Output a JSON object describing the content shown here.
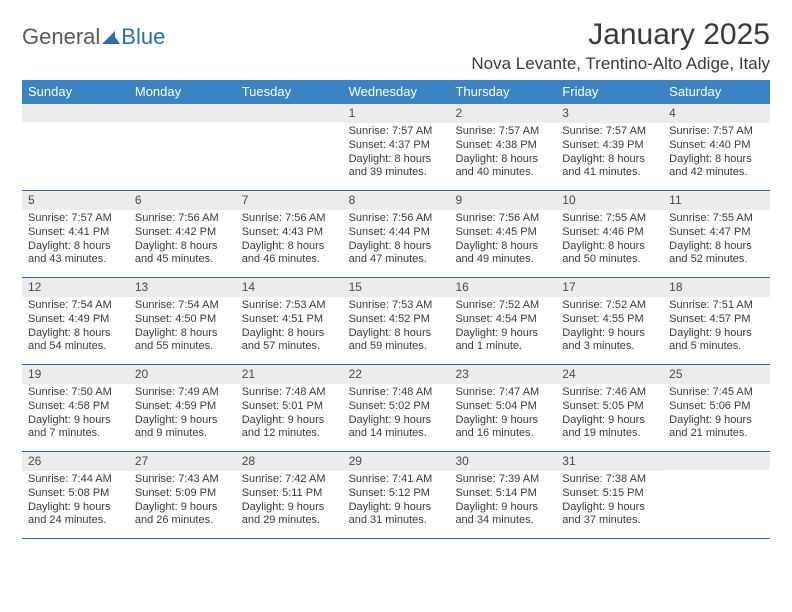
{
  "logo": {
    "text_gray": "General",
    "text_blue": "Blue"
  },
  "title": "January 2025",
  "location": "Nova Levante, Trentino-Alto Adige, Italy",
  "colors": {
    "header_bg": "#3b84c4",
    "header_text": "#ffffff",
    "week_divider": "#2f6aa3",
    "daynum_bg": "#ececec",
    "text": "#3a3a3a",
    "logo_gray": "#5a5a5a",
    "logo_blue": "#2a6fb0"
  },
  "day_headers": [
    "Sunday",
    "Monday",
    "Tuesday",
    "Wednesday",
    "Thursday",
    "Friday",
    "Saturday"
  ],
  "weeks": [
    [
      {
        "n": "",
        "sr": "",
        "ss": "",
        "dl1": "",
        "dl2": ""
      },
      {
        "n": "",
        "sr": "",
        "ss": "",
        "dl1": "",
        "dl2": ""
      },
      {
        "n": "",
        "sr": "",
        "ss": "",
        "dl1": "",
        "dl2": ""
      },
      {
        "n": "1",
        "sr": "Sunrise: 7:57 AM",
        "ss": "Sunset: 4:37 PM",
        "dl1": "Daylight: 8 hours",
        "dl2": "and 39 minutes."
      },
      {
        "n": "2",
        "sr": "Sunrise: 7:57 AM",
        "ss": "Sunset: 4:38 PM",
        "dl1": "Daylight: 8 hours",
        "dl2": "and 40 minutes."
      },
      {
        "n": "3",
        "sr": "Sunrise: 7:57 AM",
        "ss": "Sunset: 4:39 PM",
        "dl1": "Daylight: 8 hours",
        "dl2": "and 41 minutes."
      },
      {
        "n": "4",
        "sr": "Sunrise: 7:57 AM",
        "ss": "Sunset: 4:40 PM",
        "dl1": "Daylight: 8 hours",
        "dl2": "and 42 minutes."
      }
    ],
    [
      {
        "n": "5",
        "sr": "Sunrise: 7:57 AM",
        "ss": "Sunset: 4:41 PM",
        "dl1": "Daylight: 8 hours",
        "dl2": "and 43 minutes."
      },
      {
        "n": "6",
        "sr": "Sunrise: 7:56 AM",
        "ss": "Sunset: 4:42 PM",
        "dl1": "Daylight: 8 hours",
        "dl2": "and 45 minutes."
      },
      {
        "n": "7",
        "sr": "Sunrise: 7:56 AM",
        "ss": "Sunset: 4:43 PM",
        "dl1": "Daylight: 8 hours",
        "dl2": "and 46 minutes."
      },
      {
        "n": "8",
        "sr": "Sunrise: 7:56 AM",
        "ss": "Sunset: 4:44 PM",
        "dl1": "Daylight: 8 hours",
        "dl2": "and 47 minutes."
      },
      {
        "n": "9",
        "sr": "Sunrise: 7:56 AM",
        "ss": "Sunset: 4:45 PM",
        "dl1": "Daylight: 8 hours",
        "dl2": "and 49 minutes."
      },
      {
        "n": "10",
        "sr": "Sunrise: 7:55 AM",
        "ss": "Sunset: 4:46 PM",
        "dl1": "Daylight: 8 hours",
        "dl2": "and 50 minutes."
      },
      {
        "n": "11",
        "sr": "Sunrise: 7:55 AM",
        "ss": "Sunset: 4:47 PM",
        "dl1": "Daylight: 8 hours",
        "dl2": "and 52 minutes."
      }
    ],
    [
      {
        "n": "12",
        "sr": "Sunrise: 7:54 AM",
        "ss": "Sunset: 4:49 PM",
        "dl1": "Daylight: 8 hours",
        "dl2": "and 54 minutes."
      },
      {
        "n": "13",
        "sr": "Sunrise: 7:54 AM",
        "ss": "Sunset: 4:50 PM",
        "dl1": "Daylight: 8 hours",
        "dl2": "and 55 minutes."
      },
      {
        "n": "14",
        "sr": "Sunrise: 7:53 AM",
        "ss": "Sunset: 4:51 PM",
        "dl1": "Daylight: 8 hours",
        "dl2": "and 57 minutes."
      },
      {
        "n": "15",
        "sr": "Sunrise: 7:53 AM",
        "ss": "Sunset: 4:52 PM",
        "dl1": "Daylight: 8 hours",
        "dl2": "and 59 minutes."
      },
      {
        "n": "16",
        "sr": "Sunrise: 7:52 AM",
        "ss": "Sunset: 4:54 PM",
        "dl1": "Daylight: 9 hours",
        "dl2": "and 1 minute."
      },
      {
        "n": "17",
        "sr": "Sunrise: 7:52 AM",
        "ss": "Sunset: 4:55 PM",
        "dl1": "Daylight: 9 hours",
        "dl2": "and 3 minutes."
      },
      {
        "n": "18",
        "sr": "Sunrise: 7:51 AM",
        "ss": "Sunset: 4:57 PM",
        "dl1": "Daylight: 9 hours",
        "dl2": "and 5 minutes."
      }
    ],
    [
      {
        "n": "19",
        "sr": "Sunrise: 7:50 AM",
        "ss": "Sunset: 4:58 PM",
        "dl1": "Daylight: 9 hours",
        "dl2": "and 7 minutes."
      },
      {
        "n": "20",
        "sr": "Sunrise: 7:49 AM",
        "ss": "Sunset: 4:59 PM",
        "dl1": "Daylight: 9 hours",
        "dl2": "and 9 minutes."
      },
      {
        "n": "21",
        "sr": "Sunrise: 7:48 AM",
        "ss": "Sunset: 5:01 PM",
        "dl1": "Daylight: 9 hours",
        "dl2": "and 12 minutes."
      },
      {
        "n": "22",
        "sr": "Sunrise: 7:48 AM",
        "ss": "Sunset: 5:02 PM",
        "dl1": "Daylight: 9 hours",
        "dl2": "and 14 minutes."
      },
      {
        "n": "23",
        "sr": "Sunrise: 7:47 AM",
        "ss": "Sunset: 5:04 PM",
        "dl1": "Daylight: 9 hours",
        "dl2": "and 16 minutes."
      },
      {
        "n": "24",
        "sr": "Sunrise: 7:46 AM",
        "ss": "Sunset: 5:05 PM",
        "dl1": "Daylight: 9 hours",
        "dl2": "and 19 minutes."
      },
      {
        "n": "25",
        "sr": "Sunrise: 7:45 AM",
        "ss": "Sunset: 5:06 PM",
        "dl1": "Daylight: 9 hours",
        "dl2": "and 21 minutes."
      }
    ],
    [
      {
        "n": "26",
        "sr": "Sunrise: 7:44 AM",
        "ss": "Sunset: 5:08 PM",
        "dl1": "Daylight: 9 hours",
        "dl2": "and 24 minutes."
      },
      {
        "n": "27",
        "sr": "Sunrise: 7:43 AM",
        "ss": "Sunset: 5:09 PM",
        "dl1": "Daylight: 9 hours",
        "dl2": "and 26 minutes."
      },
      {
        "n": "28",
        "sr": "Sunrise: 7:42 AM",
        "ss": "Sunset: 5:11 PM",
        "dl1": "Daylight: 9 hours",
        "dl2": "and 29 minutes."
      },
      {
        "n": "29",
        "sr": "Sunrise: 7:41 AM",
        "ss": "Sunset: 5:12 PM",
        "dl1": "Daylight: 9 hours",
        "dl2": "and 31 minutes."
      },
      {
        "n": "30",
        "sr": "Sunrise: 7:39 AM",
        "ss": "Sunset: 5:14 PM",
        "dl1": "Daylight: 9 hours",
        "dl2": "and 34 minutes."
      },
      {
        "n": "31",
        "sr": "Sunrise: 7:38 AM",
        "ss": "Sunset: 5:15 PM",
        "dl1": "Daylight: 9 hours",
        "dl2": "and 37 minutes."
      },
      {
        "n": "",
        "sr": "",
        "ss": "",
        "dl1": "",
        "dl2": ""
      }
    ]
  ]
}
